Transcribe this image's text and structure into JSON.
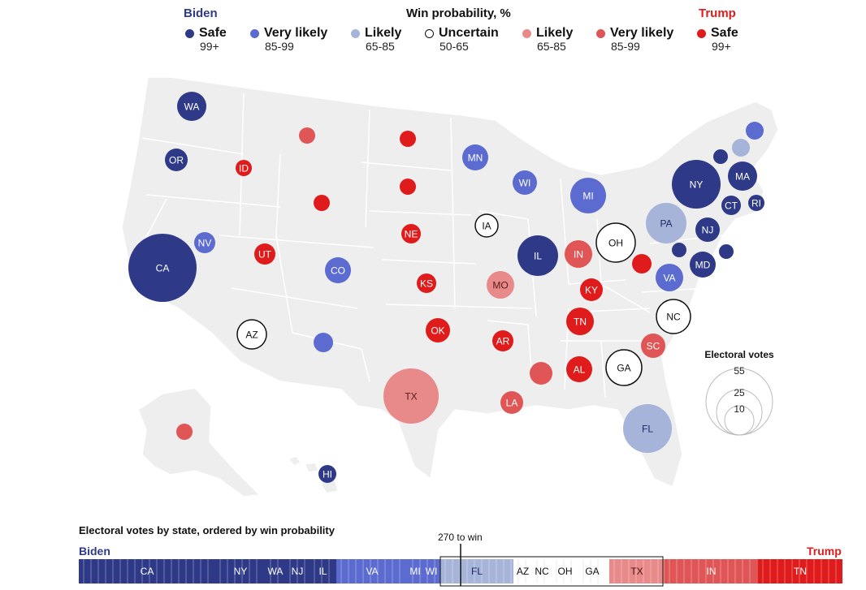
{
  "legend": {
    "biden_label": "Biden",
    "title": "Win probability, %",
    "trump_label": "Trump",
    "categories": [
      {
        "label": "Safe",
        "range": "99+",
        "color": "#2e3a87",
        "party": "biden"
      },
      {
        "label": "Very likely",
        "range": "85-99",
        "color": "#5b6bd0",
        "party": "biden"
      },
      {
        "label": "Likely",
        "range": "65-85",
        "color": "#a6b4da",
        "party": "biden"
      },
      {
        "label": "Uncertain",
        "range": "50-65",
        "color": "#ffffff",
        "party": "none"
      },
      {
        "label": "Likely",
        "range": "65-85",
        "color": "#e98a8a",
        "party": "trump"
      },
      {
        "label": "Very likely",
        "range": "85-99",
        "color": "#e05555",
        "party": "trump"
      },
      {
        "label": "Safe",
        "range": "99+",
        "color": "#e01b1b",
        "party": "trump"
      }
    ]
  },
  "size_legend": {
    "title": "Electoral votes",
    "values": [
      "55",
      "25",
      "10"
    ]
  },
  "states": [
    {
      "label": "WA",
      "cat": "safe_b"
    },
    {
      "label": "OR",
      "cat": "safe_b"
    },
    {
      "label": "CA",
      "cat": "safe_b"
    },
    {
      "label": "NV",
      "cat": "vlikely_b"
    },
    {
      "label": "ID",
      "cat": "safe_t"
    },
    {
      "label": "",
      "cat": "vlikely_t"
    },
    {
      "label": "",
      "cat": "safe_t"
    },
    {
      "label": "UT",
      "cat": "safe_t"
    },
    {
      "label": "CO",
      "cat": "vlikely_b"
    },
    {
      "label": "AZ",
      "cat": "uncertain"
    },
    {
      "label": "",
      "cat": "vlikely_b"
    },
    {
      "label": "",
      "cat": "safe_t"
    },
    {
      "label": "",
      "cat": "safe_t"
    },
    {
      "label": "NE",
      "cat": "safe_t"
    },
    {
      "label": "KS",
      "cat": "safe_t"
    },
    {
      "label": "OK",
      "cat": "safe_t"
    },
    {
      "label": "TX",
      "cat": "likely_t"
    },
    {
      "label": "MN",
      "cat": "vlikely_b"
    },
    {
      "label": "IA",
      "cat": "uncertain"
    },
    {
      "label": "MO",
      "cat": "likely_t"
    },
    {
      "label": "AR",
      "cat": "safe_t"
    },
    {
      "label": "LA",
      "cat": "vlikely_t"
    },
    {
      "label": "WI",
      "cat": "vlikely_b"
    },
    {
      "label": "IL",
      "cat": "safe_b"
    },
    {
      "label": "MI",
      "cat": "vlikely_b"
    },
    {
      "label": "IN",
      "cat": "vlikely_t"
    },
    {
      "label": "OH",
      "cat": "uncertain"
    },
    {
      "label": "KY",
      "cat": "safe_t"
    },
    {
      "label": "TN",
      "cat": "safe_t"
    },
    {
      "label": "",
      "cat": "vlikely_t"
    },
    {
      "label": "AL",
      "cat": "safe_t"
    },
    {
      "label": "GA",
      "cat": "uncertain"
    },
    {
      "label": "FL",
      "cat": "likely_b"
    },
    {
      "label": "SC",
      "cat": "vlikely_t"
    },
    {
      "label": "NC",
      "cat": "uncertain"
    },
    {
      "label": "VA",
      "cat": "vlikely_b"
    },
    {
      "label": "",
      "cat": "safe_t"
    },
    {
      "label": "PA",
      "cat": "likely_b"
    },
    {
      "label": "NY",
      "cat": "safe_b"
    },
    {
      "label": "NJ",
      "cat": "safe_b"
    },
    {
      "label": "MD",
      "cat": "safe_b"
    },
    {
      "label": "",
      "cat": "safe_b"
    },
    {
      "label": "",
      "cat": "safe_b"
    },
    {
      "label": "CT",
      "cat": "safe_b"
    },
    {
      "label": "RI",
      "cat": "safe_b"
    },
    {
      "label": "MA",
      "cat": "safe_b"
    },
    {
      "label": "",
      "cat": "safe_b"
    },
    {
      "label": "",
      "cat": "likely_b"
    },
    {
      "label": "",
      "cat": "vlikely_b"
    },
    {
      "label": "",
      "cat": "vlikely_t"
    },
    {
      "label": "HI",
      "cat": "safe_b"
    }
  ],
  "bar": {
    "title": "Electoral votes by state, ordered by win probability",
    "biden_label": "Biden",
    "trump_label": "Trump",
    "win_label": "270 to win",
    "segments": [
      {
        "label": "CA",
        "cat": "safe_b"
      },
      {
        "label": "NY",
        "cat": "safe_b"
      },
      {
        "label": "WA",
        "cat": "safe_b"
      },
      {
        "label": "NJ",
        "cat": "safe_b"
      },
      {
        "label": "IL",
        "cat": "safe_b"
      },
      {
        "label": "VA",
        "cat": "vlikely_b"
      },
      {
        "label": "MI",
        "cat": "vlikely_b"
      },
      {
        "label": "WI",
        "cat": "vlikely_b"
      },
      {
        "label": "FL",
        "cat": "likely_b"
      },
      {
        "label": "AZ",
        "cat": "uncertain"
      },
      {
        "label": "NC",
        "cat": "uncertain"
      },
      {
        "label": "OH",
        "cat": "uncertain"
      },
      {
        "label": "GA",
        "cat": "uncertain"
      },
      {
        "label": "TX",
        "cat": "likely_t"
      },
      {
        "label": "IN",
        "cat": "vlikely_t"
      },
      {
        "label": "TN",
        "cat": "safe_t"
      }
    ]
  },
  "colors": {
    "safe_b": "#2e3a87",
    "vlikely_b": "#5b6bd0",
    "likely_b": "#a6b4da",
    "uncertain": "#ffffff",
    "likely_t": "#e98a8a",
    "vlikely_t": "#e05555",
    "safe_t": "#e01b1b",
    "land": "#eeeeee",
    "border": "#ffffff"
  }
}
